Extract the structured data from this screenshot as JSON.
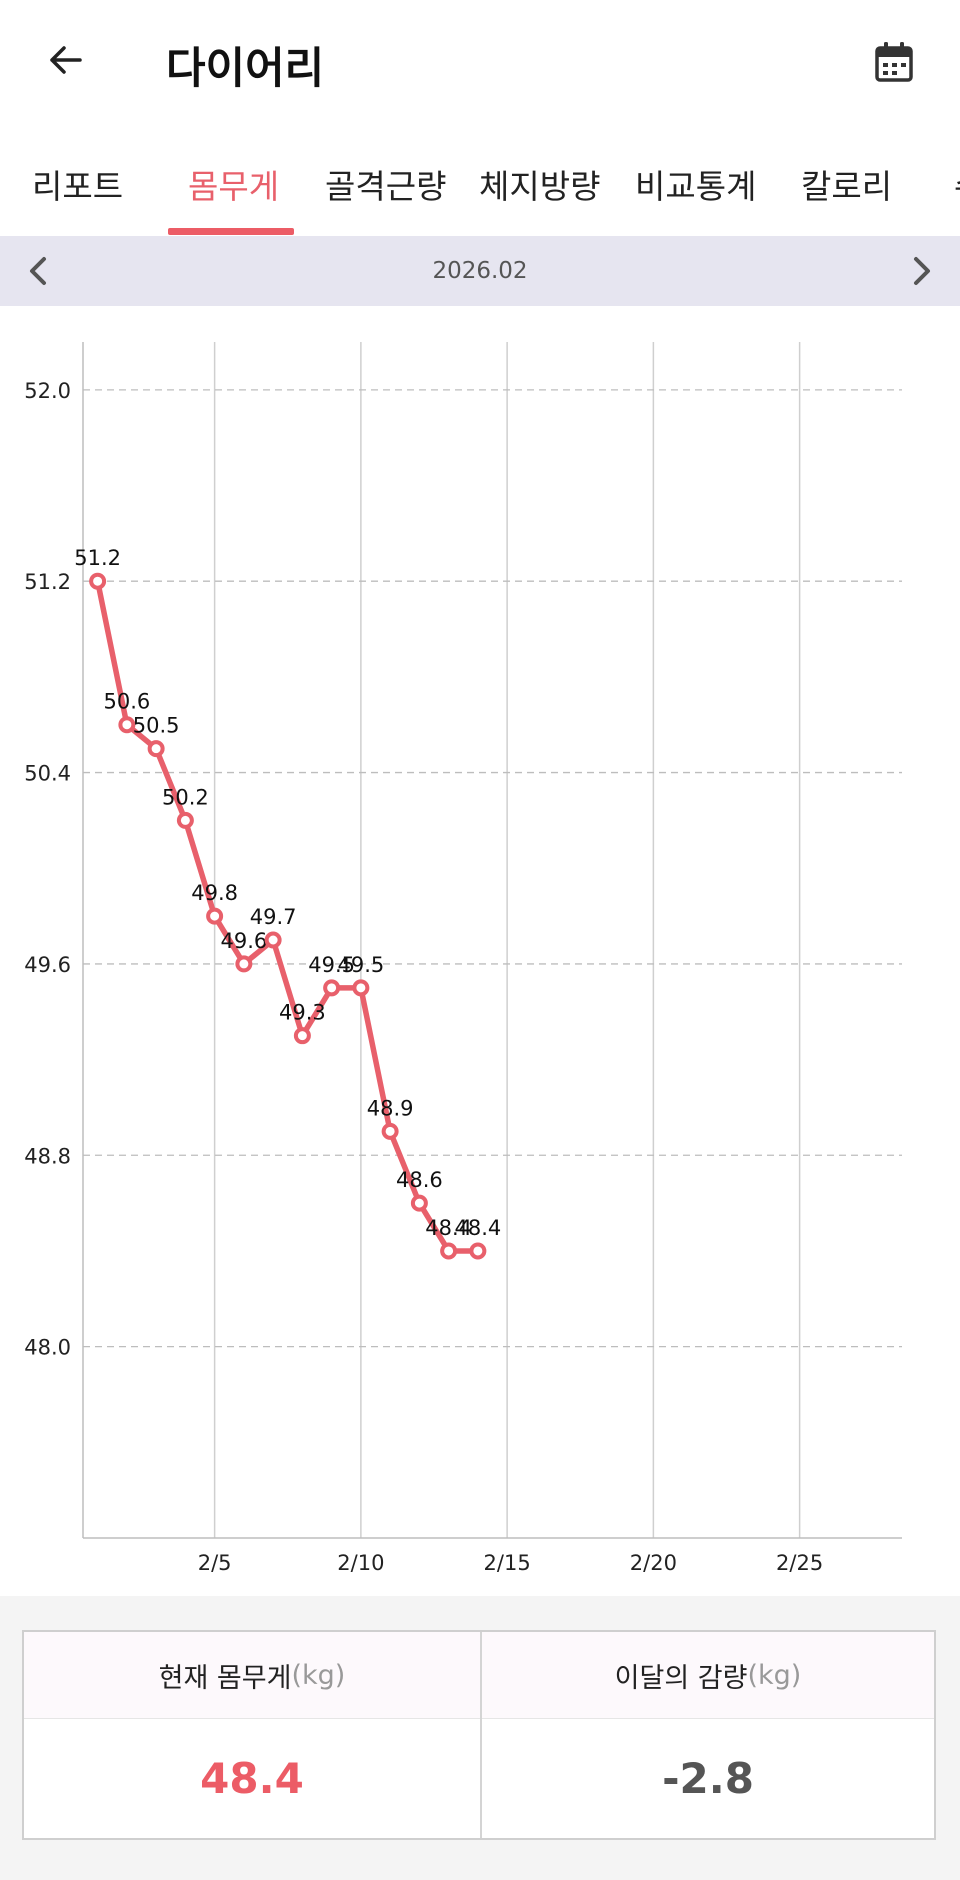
{
  "header": {
    "title": "다이어리",
    "back_icon": "arrow-left-icon",
    "calendar_icon": "calendar-icon"
  },
  "tabs": [
    {
      "label": "리포트",
      "active": false
    },
    {
      "label": "몸무게",
      "active": true
    },
    {
      "label": "골격근량",
      "active": false
    },
    {
      "label": "체지방량",
      "active": false
    },
    {
      "label": "비교통계",
      "active": false
    },
    {
      "label": "칼로리",
      "active": false
    },
    {
      "label": "수",
      "active": false
    }
  ],
  "month_nav": {
    "label": "2026.02",
    "prev_icon": "chevron-left-icon",
    "next_icon": "chevron-right-icon"
  },
  "colors": {
    "accent": "#ec5c66",
    "line": "#e8606b",
    "month_bar_bg": "#e6e5f0"
  },
  "chart_data": {
    "type": "line",
    "title": "",
    "xlabel": "",
    "ylabel": "",
    "xlim": [
      0.5,
      28.5
    ],
    "ylim": [
      47.2,
      52.2
    ],
    "y_ticks": [
      "48.0",
      "48.8",
      "49.6",
      "50.4",
      "51.2",
      "52.0"
    ],
    "x_ticks": [
      {
        "day": 5,
        "label": "2/5"
      },
      {
        "day": 10,
        "label": "2/10"
      },
      {
        "day": 15,
        "label": "2/15"
      },
      {
        "day": 20,
        "label": "2/20"
      },
      {
        "day": 25,
        "label": "2/25"
      }
    ],
    "grid": true,
    "series": [
      {
        "x": [
          1,
          2,
          3,
          4,
          5,
          6,
          7,
          8,
          9,
          10,
          11,
          12,
          13,
          14
        ],
        "values": [
          51.2,
          50.6,
          50.5,
          50.2,
          49.8,
          49.6,
          49.7,
          49.3,
          49.5,
          49.5,
          48.9,
          48.6,
          48.4,
          48.4
        ],
        "labels": [
          "51.2",
          "50.6",
          "50.5",
          "50.2",
          "49.8",
          "49.6",
          "49.7",
          "49.3",
          "49.5",
          "49.5",
          "48.9",
          "48.6",
          "48.4",
          "48.4"
        ]
      }
    ]
  },
  "summary": {
    "current_label": "현재 몸무게",
    "current_unit": "(kg)",
    "current_value": "48.4",
    "change_label": "이달의 감량",
    "change_unit": "(kg)",
    "change_value": "-2.8"
  }
}
